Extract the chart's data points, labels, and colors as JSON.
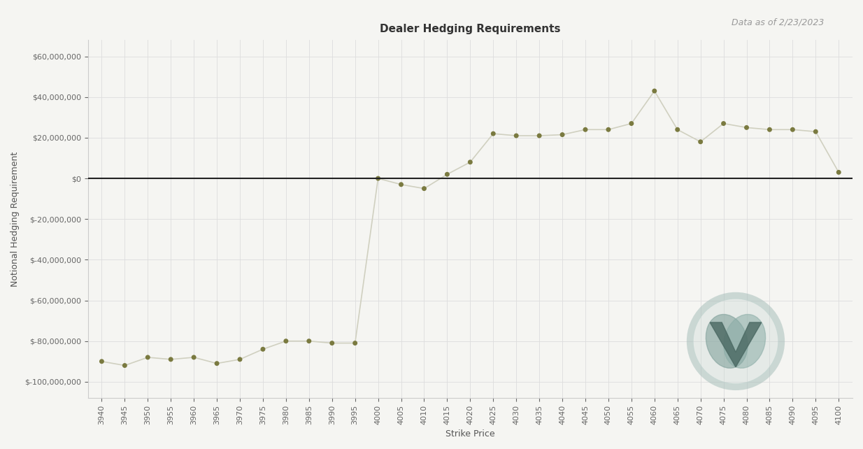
{
  "title": "Dealer Hedging Requirements",
  "subtitle": "Data as of 2/23/2023",
  "xlabel": "Strike Price",
  "ylabel": "Notional Hedging Requirement",
  "strikes": [
    3940,
    3945,
    3950,
    3955,
    3960,
    3965,
    3970,
    3975,
    3980,
    3985,
    3990,
    3995,
    4000,
    4005,
    4010,
    4015,
    4020,
    4025,
    4030,
    4035,
    4040,
    4045,
    4050,
    4055,
    4060,
    4065,
    4070,
    4075,
    4080,
    4085,
    4090,
    4095,
    4100
  ],
  "values": [
    -90000000,
    -92000000,
    -88000000,
    -89000000,
    -88000000,
    -91000000,
    -89000000,
    -84000000,
    -80000000,
    -80000000,
    -81000000,
    -81000000,
    0,
    -3000000,
    -5000000,
    2000000,
    8000000,
    22000000,
    21000000,
    21000000,
    21500000,
    24000000,
    24000000,
    27000000,
    43000000,
    24000000,
    18000000,
    27000000,
    25000000,
    24000000,
    24000000,
    23000000,
    3000000
  ],
  "line_color": "#d0d0c0",
  "marker_color": "#7a7a40",
  "marker_size": 5,
  "line_width": 1.2,
  "bg_color": "#f5f5f2",
  "zero_line_color": "#222222",
  "grid_color": "#dddddd",
  "title_fontsize": 11,
  "subtitle_fontsize": 9,
  "axis_label_fontsize": 9,
  "tick_fontsize": 8,
  "ylim": [
    -108000000,
    68000000
  ],
  "yticks": [
    -100000000,
    -80000000,
    -60000000,
    -40000000,
    -20000000,
    0,
    20000000,
    40000000,
    60000000
  ]
}
